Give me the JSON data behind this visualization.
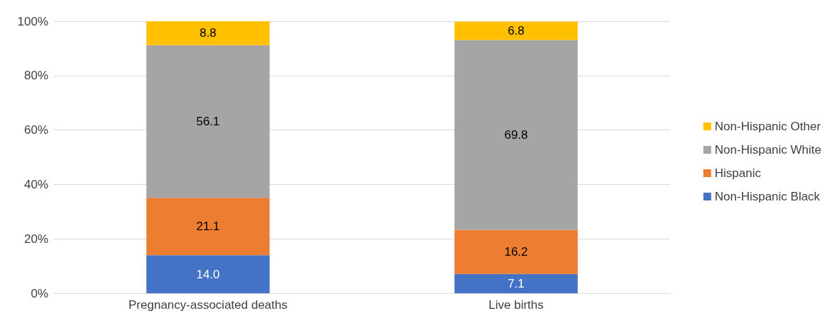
{
  "chart_data": {
    "type": "bar",
    "stacked": true,
    "categories": [
      "Pregnancy-associated deaths",
      "Live births"
    ],
    "series": [
      {
        "name": "Non-Hispanic Black",
        "color": "#4472c4",
        "values": [
          14.0,
          7.1
        ],
        "value_labels": [
          "14.0",
          "7.1"
        ]
      },
      {
        "name": "Hispanic",
        "color": "#ed7d31",
        "values": [
          21.1,
          16.2
        ],
        "value_labels": [
          "21.1",
          "16.2"
        ]
      },
      {
        "name": "Non-Hispanic White",
        "color": "#a5a5a5",
        "values": [
          56.1,
          69.8
        ],
        "value_labels": [
          "56.1",
          "69.8"
        ]
      },
      {
        "name": "Non-Hispanic Other",
        "color": "#ffc000",
        "values": [
          8.8,
          6.8
        ],
        "value_labels": [
          "8.8",
          "6.8"
        ]
      }
    ],
    "ylim": [
      0,
      100
    ],
    "yticks": [
      {
        "value": 0,
        "label": "0%"
      },
      {
        "value": 20,
        "label": "20%"
      },
      {
        "value": 40,
        "label": "40%"
      },
      {
        "value": 60,
        "label": "60%"
      },
      {
        "value": 80,
        "label": "80%"
      },
      {
        "value": 100,
        "label": "100%"
      }
    ],
    "grid": "y",
    "legend": "right"
  }
}
